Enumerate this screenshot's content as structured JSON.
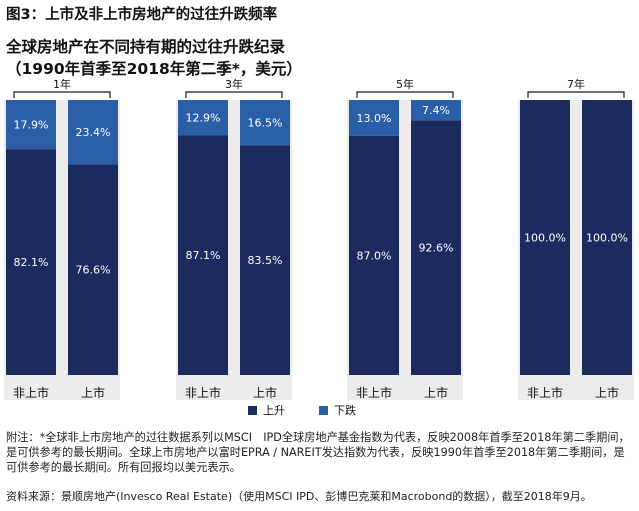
{
  "figure_title": "图3：上市及非上市房地产的过往升跌频率",
  "subtitle_line1": "全球房地产在不同持有期的过往升跌纪录",
  "subtitle_line2": "（1990年首季至2018年第二季*，美元）",
  "colors": {
    "up": "#1c2b5e",
    "down": "#2a5fa8",
    "group_bg": "#ececec",
    "bracket": "#1a1a1a"
  },
  "chart_data": {
    "type": "bar",
    "stacked": true,
    "title": "全球房地产在不同持有期的过往升跌纪录",
    "ylim": [
      0,
      100
    ],
    "groups": [
      {
        "period": "1年",
        "categories": [
          "非上市",
          "上市"
        ],
        "up": [
          82.1,
          76.6
        ],
        "down": [
          17.9,
          23.4
        ],
        "up_labels": [
          "82.1%",
          "76.6%"
        ],
        "down_labels": [
          "17.9%",
          "23.4%"
        ]
      },
      {
        "period": "3年",
        "categories": [
          "非上市",
          "上市"
        ],
        "up": [
          87.1,
          83.5
        ],
        "down": [
          12.9,
          16.5
        ],
        "up_labels": [
          "87.1%",
          "83.5%"
        ],
        "down_labels": [
          "12.9%",
          "16.5%"
        ]
      },
      {
        "period": "5年",
        "categories": [
          "非上市",
          "上市"
        ],
        "up": [
          87.0,
          92.6
        ],
        "down": [
          13.0,
          7.4
        ],
        "up_labels": [
          "87.0%",
          "92.6%"
        ],
        "down_labels": [
          "13.0%",
          "7.4%"
        ]
      },
      {
        "period": "7年",
        "categories": [
          "非上市",
          "上市"
        ],
        "up": [
          100.0,
          100.0
        ],
        "down": [
          0,
          0
        ],
        "up_labels": [
          "100.0%",
          "100.0%"
        ],
        "down_labels": [
          "",
          ""
        ]
      }
    ],
    "series": [
      {
        "name": "上升"
      },
      {
        "name": "下跌"
      }
    ]
  },
  "legend": {
    "up_label": "上升",
    "down_label": "下跌"
  },
  "note": "附注：*全球非上市房地产的过往数据系列以MSCI　IPD全球房地产基金指数为代表，反映2008年首季至2018年第二季期间，是可供参考的最长期间。全球上市房地产以富时EPRA / NAREIT发达指数为代表，反映1990年首季至2018年第二季期间，是可供参考的最长期间。所有回报均以美元表示。",
  "source": "资料来源：景顺房地产(Invesco Real Estate)（使用MSCI IPD、彭博巴克莱和Macrobond的数据），截至2018年9月。"
}
